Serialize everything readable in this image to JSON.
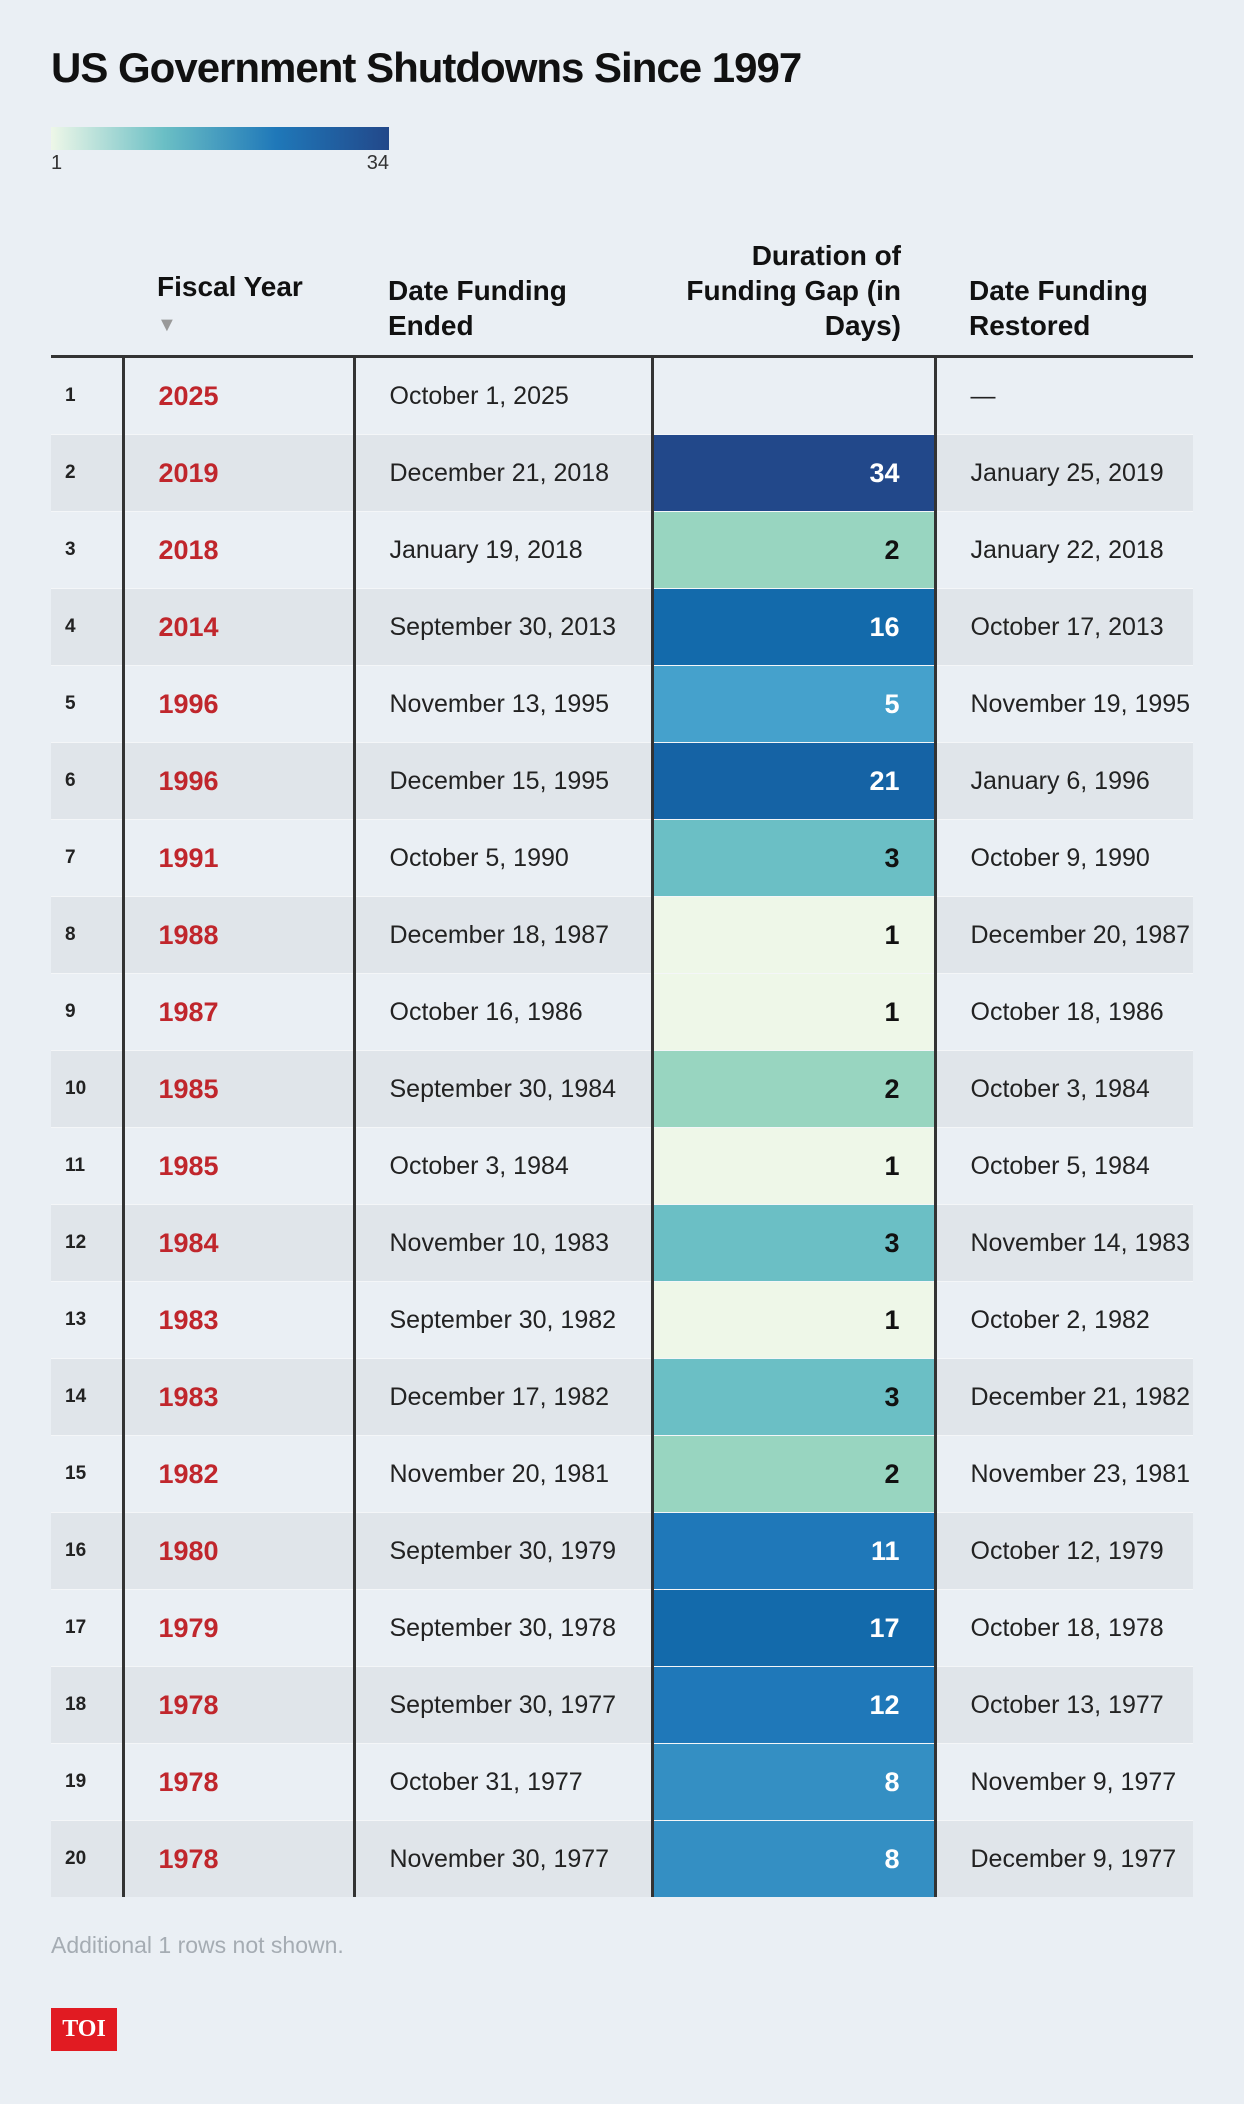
{
  "header": {
    "title": "US Government Shutdowns Since 1997"
  },
  "legend": {
    "min": 1,
    "max": 34,
    "colors": [
      "#eef7e8",
      "#6bbfc5",
      "#1f78b9",
      "#22488a"
    ]
  },
  "table": {
    "columns": [
      "Fiscal Year",
      "Date Funding Ended",
      "Duration of Funding Gap (in Days)",
      "Date Funding Restored"
    ],
    "rows": [
      {
        "number": "1",
        "fiscal_year": "2025",
        "date_ended": "October 1, 2025",
        "duration": null,
        "color": null,
        "date_restored": "—"
      },
      {
        "number": "2",
        "fiscal_year": "2019",
        "date_ended": "December 21, 2018",
        "duration": 34,
        "color": "#22488a",
        "date_restored": "January 25, 2019"
      },
      {
        "number": "3",
        "fiscal_year": "2018",
        "date_ended": "January 19, 2018",
        "duration": 2,
        "color": "#98d5c0",
        "date_restored": "January 22, 2018"
      },
      {
        "number": "4",
        "fiscal_year": "2014",
        "date_ended": "September 30, 2013",
        "duration": 16,
        "color": "#136aab",
        "date_restored": "October 17, 2013"
      },
      {
        "number": "5",
        "fiscal_year": "1996",
        "date_ended": "November 13, 1995",
        "duration": 5,
        "color": "#45a1cc",
        "date_restored": "November 19, 1995"
      },
      {
        "number": "6",
        "fiscal_year": "1996",
        "date_ended": "December 15, 1995",
        "duration": 21,
        "color": "#1563a5",
        "date_restored": "January 6, 1996"
      },
      {
        "number": "7",
        "fiscal_year": "1991",
        "date_ended": "October 5, 1990",
        "duration": 3,
        "color": "#6bbfc5",
        "date_restored": "October 9, 1990"
      },
      {
        "number": "8",
        "fiscal_year": "1988",
        "date_ended": "December 18, 1987",
        "duration": 1,
        "color": "#eef7e8",
        "date_restored": "December 20, 1987"
      },
      {
        "number": "9",
        "fiscal_year": "1987",
        "date_ended": "October 16, 1986",
        "duration": 1,
        "color": "#eef7e8",
        "date_restored": "October 18, 1986"
      },
      {
        "number": "10",
        "fiscal_year": "1985",
        "date_ended": "September 30, 1984",
        "duration": 2,
        "color": "#98d5c0",
        "date_restored": "October 3, 1984"
      },
      {
        "number": "11",
        "fiscal_year": "1985",
        "date_ended": "October 3, 1984",
        "duration": 1,
        "color": "#eef7e8",
        "date_restored": "October 5, 1984"
      },
      {
        "number": "12",
        "fiscal_year": "1984",
        "date_ended": "November 10, 1983",
        "duration": 3,
        "color": "#6bbfc5",
        "date_restored": "November 14, 1983"
      },
      {
        "number": "13",
        "fiscal_year": "1983",
        "date_ended": "September 30, 1982",
        "duration": 1,
        "color": "#eef7e8",
        "date_restored": "October 2, 1982"
      },
      {
        "number": "14",
        "fiscal_year": "1983",
        "date_ended": "December 17, 1982",
        "duration": 3,
        "color": "#6bbfc5",
        "date_restored": "December 21, 1982"
      },
      {
        "number": "15",
        "fiscal_year": "1982",
        "date_ended": "November 20, 1981",
        "duration": 2,
        "color": "#98d5c0",
        "date_restored": "November 23, 1981"
      },
      {
        "number": "16",
        "fiscal_year": "1980",
        "date_ended": "September 30, 1979",
        "duration": 11,
        "color": "#1f78b9",
        "date_restored": "October 12, 1979"
      },
      {
        "number": "17",
        "fiscal_year": "1979",
        "date_ended": "September 30, 1978",
        "duration": 17,
        "color": "#136aab",
        "date_restored": "October 18, 1978"
      },
      {
        "number": "18",
        "fiscal_year": "1978",
        "date_ended": "September 30, 1977",
        "duration": 12,
        "color": "#1f78b9",
        "date_restored": "October 13, 1977"
      },
      {
        "number": "19",
        "fiscal_year": "1978",
        "date_ended": "October 31, 1977",
        "duration": 8,
        "color": "#348fc3",
        "date_restored": "November 9, 1977"
      },
      {
        "number": "20",
        "fiscal_year": "1978",
        "date_ended": "November 30, 1977",
        "duration": 8,
        "color": "#348fc3",
        "date_restored": "December 9, 1977"
      }
    ]
  },
  "footer": {
    "note": "Additional 1 rows not shown.",
    "logo": "TOI"
  }
}
